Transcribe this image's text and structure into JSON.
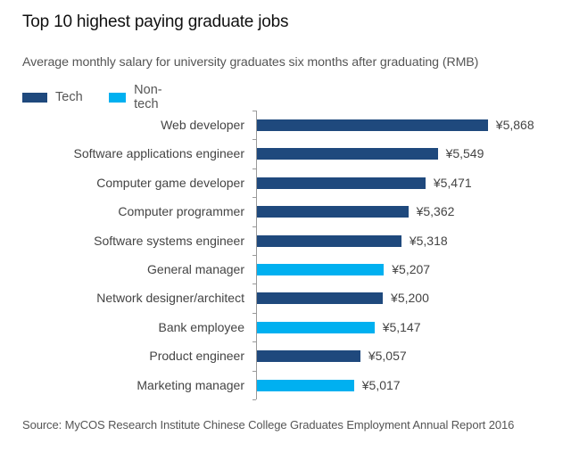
{
  "title": "Top 10 highest paying graduate jobs",
  "subtitle": "Average monthly salary for university graduates six months after graduating (RMB)",
  "legend": [
    {
      "label": "Tech",
      "color": "#1F497D"
    },
    {
      "label": "Non-tech",
      "color": "#00B0F0"
    }
  ],
  "source": "Source: MyCOS Research Institute Chinese College Graduates Employment Annual Report 2016",
  "chart_data": {
    "type": "bar",
    "orientation": "horizontal",
    "title": "Top 10 highest paying graduate jobs",
    "subtitle": "Average monthly salary for university graduates six months after graduating (RMB)",
    "xlabel": "",
    "ylabel": "",
    "categories": [
      "Web developer",
      "Software applications engineer",
      "Computer game developer",
      "Computer programmer",
      "Software systems engineer",
      "General manager",
      "Network designer/architect",
      "Bank employee",
      "Product engineer",
      "Marketing manager"
    ],
    "values": [
      5868,
      5549,
      5471,
      5362,
      5318,
      5207,
      5200,
      5147,
      5057,
      5017
    ],
    "value_labels": [
      "¥5,868",
      "¥5,549",
      "¥5,471",
      "¥5,362",
      "¥5,318",
      "¥5,207",
      "¥5,200",
      "¥5,147",
      "¥5,057",
      "¥5,017"
    ],
    "groups": [
      "Tech",
      "Tech",
      "Tech",
      "Tech",
      "Tech",
      "Non-tech",
      "Tech",
      "Non-tech",
      "Tech",
      "Non-tech"
    ],
    "series_colors": {
      "Tech": "#1F497D",
      "Non-tech": "#00B0F0"
    },
    "legend": [
      "Tech",
      "Non-tech"
    ],
    "legend_position": "top-left",
    "xlim": [
      4400,
      6000
    ],
    "grid": false,
    "source": "Source: MyCOS Research Institute Chinese College Graduates Employment Annual Report 2016"
  }
}
